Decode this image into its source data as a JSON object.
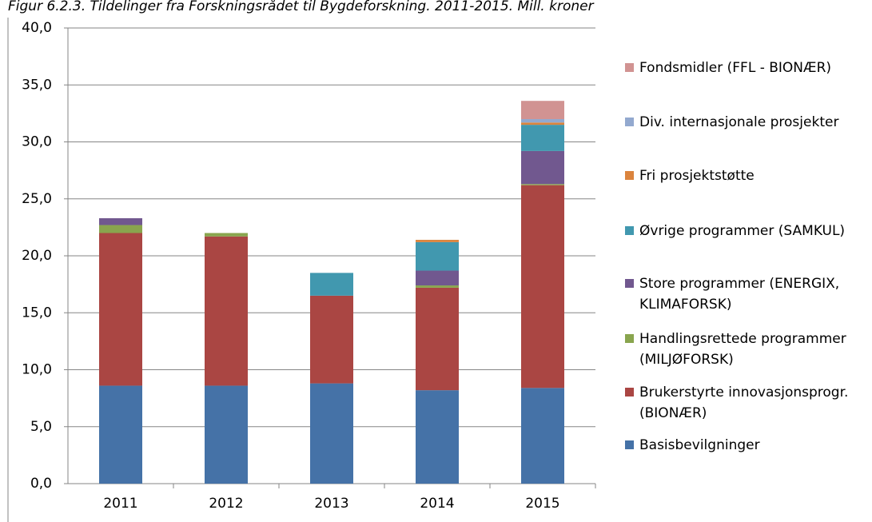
{
  "chart_data": {
    "type": "stacked_bar",
    "title": "Figur 6.2.3. Tildelinger fra Forskningsrådet til Bygdeforskning. 2011-2015. Mill. kroner",
    "categories": [
      "2011",
      "2012",
      "2013",
      "2014",
      "2015"
    ],
    "series": [
      {
        "name": "Basisbevilgninger",
        "color": "#4572a7",
        "values": [
          8.6,
          8.6,
          8.8,
          8.2,
          8.4
        ]
      },
      {
        "name": "Brukerstyrte innovasjonsprogr. (BIONÆR)",
        "color": "#aa4643",
        "values": [
          13.4,
          13.1,
          7.7,
          9.0,
          17.8
        ]
      },
      {
        "name": "Handlingsrettede programmer (MILJØFORSK)",
        "color": "#89a54e",
        "values": [
          0.7,
          0.3,
          0,
          0.2,
          0.1
        ]
      },
      {
        "name": "Store programmer (ENERGIX, KLIMAFORSK)",
        "color": "#71588f",
        "values": [
          0.6,
          0,
          0,
          1.3,
          2.9
        ]
      },
      {
        "name": "Øvrige programmer (SAMKUL)",
        "color": "#4198af",
        "values": [
          0,
          0,
          2.0,
          2.5,
          2.3
        ]
      },
      {
        "name": "Fri prosjektstøtte",
        "color": "#db843d",
        "values": [
          0,
          0,
          0,
          0.2,
          0.2
        ]
      },
      {
        "name": "Div. internasjonale prosjekter",
        "color": "#93a9cf",
        "values": [
          0,
          0,
          0,
          0,
          0.3
        ]
      },
      {
        "name": "Fondsmidler (FFL - BIONÆR)",
        "color": "#d19392",
        "values": [
          0,
          0,
          0,
          0,
          1.6
        ]
      }
    ],
    "ylim": [
      0,
      40
    ],
    "yticks": [
      {
        "value": 0,
        "label": "0,0"
      },
      {
        "value": 5,
        "label": "5,0"
      },
      {
        "value": 10,
        "label": "10,0"
      },
      {
        "value": 15,
        "label": "15,0"
      },
      {
        "value": 20,
        "label": "20,0"
      },
      {
        "value": 25,
        "label": "25,0"
      },
      {
        "value": 30,
        "label": "30,0"
      },
      {
        "value": 35,
        "label": "35,0"
      },
      {
        "value": 40,
        "label": "40,0"
      }
    ],
    "grid": true
  }
}
